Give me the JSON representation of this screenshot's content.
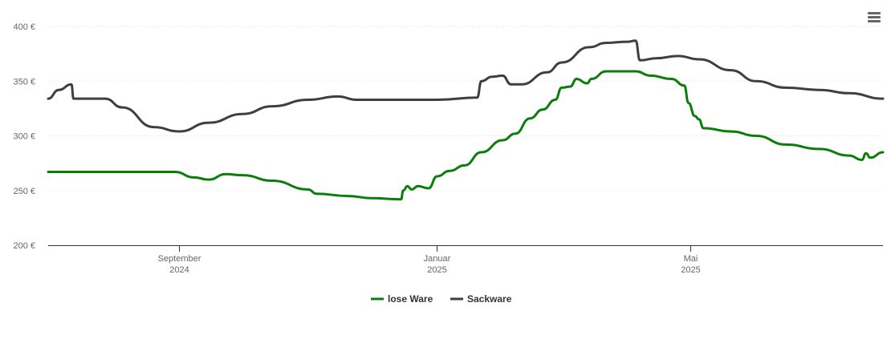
{
  "menu": {
    "icon": "hamburger-menu-icon"
  },
  "chart_data": {
    "type": "line",
    "title": "",
    "xlabel": "",
    "ylabel": "",
    "x_range": [
      "2024-07-01",
      "2025-07-31"
    ],
    "ylim": [
      200,
      400
    ],
    "y_ticks": [
      {
        "value": 200,
        "label": "200 €"
      },
      {
        "value": 250,
        "label": "250 €"
      },
      {
        "value": 300,
        "label": "300 €"
      },
      {
        "value": 350,
        "label": "350 €"
      },
      {
        "value": 400,
        "label": "400 €"
      }
    ],
    "x_ticks": [
      {
        "date": "2024-09-01",
        "label": "September",
        "sublabel": "2024"
      },
      {
        "date": "2025-01-01",
        "label": "Januar",
        "sublabel": "2025"
      },
      {
        "date": "2025-05-01",
        "label": "Mai",
        "sublabel": "2025"
      }
    ],
    "grid": true,
    "legend": "bottom-center",
    "series": [
      {
        "name": "lose Ware",
        "color": "#0a7d0a",
        "points": [
          [
            "2024-07-01",
            267
          ],
          [
            "2024-08-30",
            267
          ],
          [
            "2024-09-08",
            262
          ],
          [
            "2024-09-15",
            260
          ],
          [
            "2024-09-23",
            265
          ],
          [
            "2024-10-01",
            264
          ],
          [
            "2024-10-15",
            259
          ],
          [
            "2024-11-01",
            251
          ],
          [
            "2024-11-05",
            247
          ],
          [
            "2024-11-20",
            245
          ],
          [
            "2024-12-01",
            243
          ],
          [
            "2024-12-15",
            242
          ],
          [
            "2024-12-16",
            250
          ],
          [
            "2024-12-18",
            254
          ],
          [
            "2024-12-20",
            251
          ],
          [
            "2024-12-23",
            254
          ],
          [
            "2024-12-28",
            252
          ],
          [
            "2025-01-01",
            263
          ],
          [
            "2025-01-07",
            268
          ],
          [
            "2025-01-14",
            273
          ],
          [
            "2025-01-22",
            285
          ],
          [
            "2025-02-01",
            296
          ],
          [
            "2025-02-07",
            302
          ],
          [
            "2025-02-14",
            316
          ],
          [
            "2025-02-20",
            324
          ],
          [
            "2025-02-26",
            333
          ],
          [
            "2025-03-01",
            344
          ],
          [
            "2025-03-05",
            345
          ],
          [
            "2025-03-08",
            352
          ],
          [
            "2025-03-13",
            348
          ],
          [
            "2025-03-15",
            352
          ],
          [
            "2025-03-22",
            359
          ],
          [
            "2025-04-01",
            359
          ],
          [
            "2025-04-05",
            359
          ],
          [
            "2025-04-12",
            355
          ],
          [
            "2025-04-22",
            352
          ],
          [
            "2025-04-28",
            346
          ],
          [
            "2025-04-30",
            330
          ],
          [
            "2025-05-03",
            318
          ],
          [
            "2025-05-05",
            315
          ],
          [
            "2025-05-07",
            307
          ],
          [
            "2025-05-20",
            304
          ],
          [
            "2025-06-01",
            300
          ],
          [
            "2025-06-15",
            292
          ],
          [
            "2025-07-01",
            288
          ],
          [
            "2025-07-15",
            282
          ],
          [
            "2025-07-21",
            278
          ],
          [
            "2025-07-23",
            284
          ],
          [
            "2025-07-25",
            280
          ],
          [
            "2025-07-31",
            285
          ]
        ]
      },
      {
        "name": "Sackware",
        "color": "#3f3f3f",
        "points": [
          [
            "2024-07-01",
            334
          ],
          [
            "2024-07-06",
            342
          ],
          [
            "2024-07-12",
            347
          ],
          [
            "2024-07-13",
            334
          ],
          [
            "2024-07-28",
            334
          ],
          [
            "2024-08-05",
            326
          ],
          [
            "2024-08-20",
            308
          ],
          [
            "2024-09-01",
            304
          ],
          [
            "2024-09-15",
            312
          ],
          [
            "2024-10-01",
            320
          ],
          [
            "2024-10-15",
            327
          ],
          [
            "2024-11-01",
            333
          ],
          [
            "2024-11-15",
            336
          ],
          [
            "2024-11-24",
            333
          ],
          [
            "2025-01-01",
            333
          ],
          [
            "2025-01-20",
            335
          ],
          [
            "2025-01-22",
            350
          ],
          [
            "2025-01-27",
            354
          ],
          [
            "2025-02-01",
            355
          ],
          [
            "2025-02-05",
            347
          ],
          [
            "2025-02-10",
            347
          ],
          [
            "2025-02-22",
            358
          ],
          [
            "2025-03-01",
            367
          ],
          [
            "2025-03-14",
            381
          ],
          [
            "2025-03-22",
            385
          ],
          [
            "2025-04-01",
            386
          ],
          [
            "2025-04-05",
            387
          ],
          [
            "2025-04-07",
            369
          ],
          [
            "2025-04-15",
            371
          ],
          [
            "2025-04-25",
            373
          ],
          [
            "2025-05-05",
            370
          ],
          [
            "2025-05-20",
            360
          ],
          [
            "2025-06-01",
            350
          ],
          [
            "2025-06-15",
            344
          ],
          [
            "2025-07-01",
            342
          ],
          [
            "2025-07-15",
            339
          ],
          [
            "2025-07-31",
            334
          ]
        ]
      }
    ]
  }
}
